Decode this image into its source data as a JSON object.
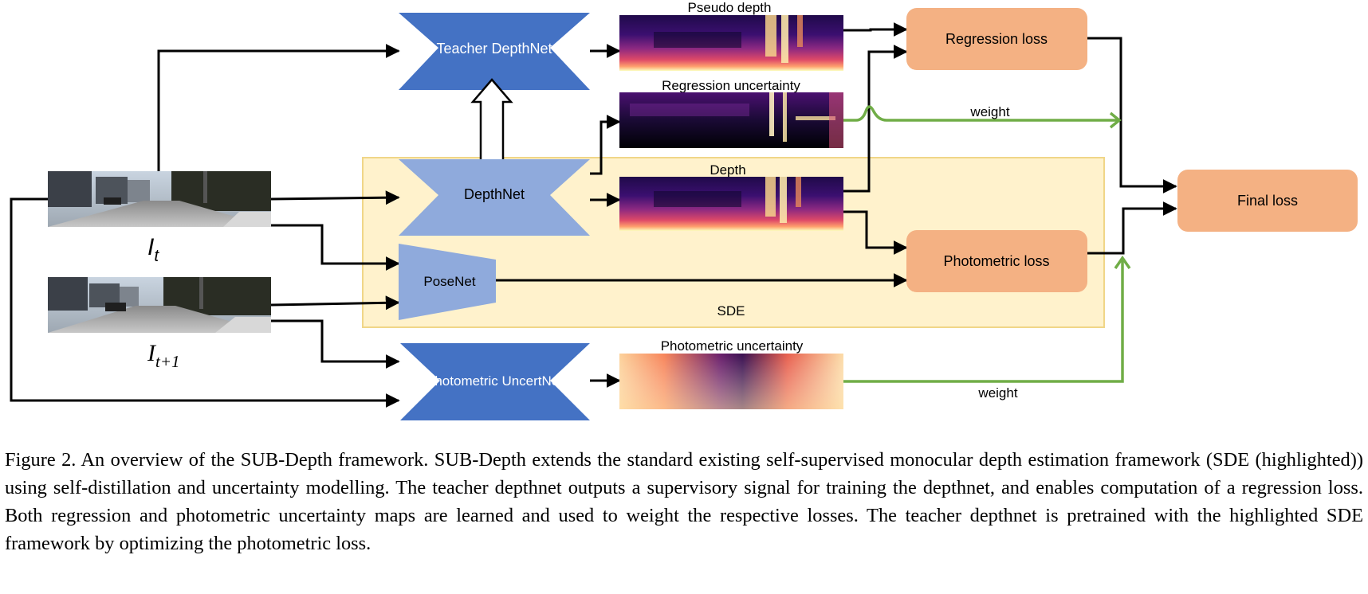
{
  "diagram": {
    "frames": {
      "current": {
        "base": "I",
        "sub": "t"
      },
      "next": {
        "base": "I",
        "sub": "t+1"
      }
    },
    "networks": {
      "teacher": "Teacher DepthNet",
      "depthnet": "DepthNet",
      "posenet": "PoseNet",
      "uncertnet": "Photometric UncertNet"
    },
    "maps": {
      "pseudo_depth": "Pseudo depth",
      "regression_uncertainty": "Regression uncertainty",
      "depth": "Depth",
      "photometric_uncertainty": "Photometric uncertainty"
    },
    "losses": {
      "regression": "Regression loss",
      "photometric": "Photometric loss",
      "final": "Final loss"
    },
    "sde_label": "SDE",
    "weight_top": "weight",
    "weight_bottom": "weight",
    "colors": {
      "teacher_net": "#4472c4",
      "student_net": "#8faadc",
      "loss_box": "#f4b183",
      "sde_region": "#fff2cc",
      "sde_border": "#f0d688",
      "weight_arrow": "#70ad47"
    }
  },
  "caption": {
    "text": "Figure 2. An overview of the SUB-Depth framework. SUB-Depth extends the standard existing self-supervised monocular depth estimation framework (SDE (highlighted)) using self-distillation and uncertainty modelling. The teacher depthnet outputs a supervisory signal for training the depthnet, and enables computation of a regression loss. Both regression and photometric uncertainty maps are learned and used to weight the respective losses. The teacher depthnet is pretrained with the highlighted SDE framework by optimizing the photometric loss."
  }
}
